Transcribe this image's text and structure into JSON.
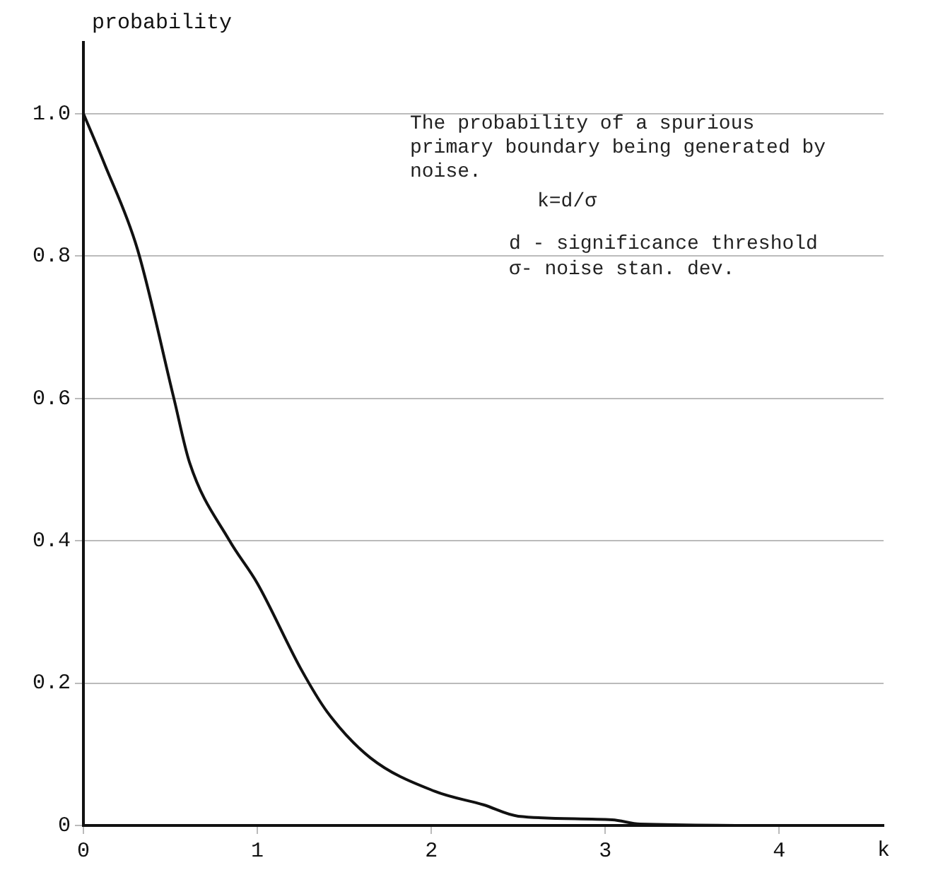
{
  "chart_data": {
    "type": "line",
    "xlabel": "k",
    "ylabel": "probability",
    "annotations": [
      "The probability of a spurious primary boundary being generated by noise.",
      "k=d/σ",
      "d - significance threshold",
      "σ- noise stan. dev."
    ],
    "x": [
      0,
      0.12,
      0.31,
      0.52,
      0.61,
      0.84,
      1.0,
      1.25,
      1.4,
      1.65,
      2.02,
      2.3,
      2.5,
      3.04,
      3.2,
      4.0
    ],
    "series": [
      {
        "color": "#111111",
        "values": [
          1.0,
          0.93,
          0.81,
          0.6,
          0.51,
          0.4,
          0.34,
          0.22,
          0.16,
          0.095,
          0.048,
          0.029,
          0.013,
          0.008,
          0.002,
          0.0
        ]
      }
    ],
    "xlim": [
      0,
      4.6
    ],
    "xticks": [
      0,
      1,
      2,
      3,
      4
    ],
    "ylim": [
      0,
      1.1
    ],
    "yticks": [
      0,
      {
        "value": 0.2,
        "label": "0.2"
      },
      {
        "value": 0.4,
        "label": "0.4"
      },
      {
        "value": 0.6,
        "label": "0.6"
      },
      {
        "value": 0.8,
        "label": "0.8"
      },
      {
        "value": 1.0,
        "label": "1.0"
      }
    ],
    "grid": "y",
    "legend": false,
    "marker": "none",
    "line_style": "solid"
  }
}
